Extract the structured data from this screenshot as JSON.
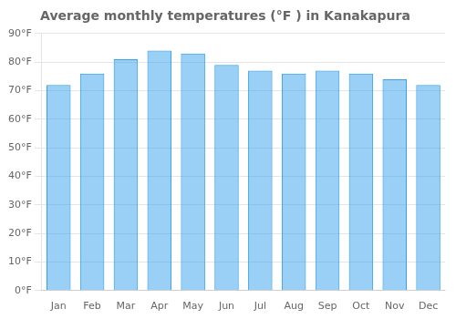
{
  "chart_data": {
    "type": "bar",
    "title": "Average monthly temperatures (°F ) in Kanakapura",
    "categories": [
      "Jan",
      "Feb",
      "Mar",
      "Apr",
      "May",
      "Jun",
      "Jul",
      "Aug",
      "Sep",
      "Oct",
      "Nov",
      "Dec"
    ],
    "values": [
      72,
      76,
      81,
      84,
      83,
      79,
      77,
      76,
      77,
      76,
      74,
      72
    ],
    "ylim": [
      0,
      90
    ],
    "yticks": [
      {
        "value": 0,
        "label": "0°F"
      },
      {
        "value": 10,
        "label": "10°F"
      },
      {
        "value": 20,
        "label": "20°F"
      },
      {
        "value": 30,
        "label": "30°F"
      },
      {
        "value": 40,
        "label": "40°F"
      },
      {
        "value": 50,
        "label": "50°F"
      },
      {
        "value": 60,
        "label": "60°F"
      },
      {
        "value": 70,
        "label": "70°F"
      },
      {
        "value": 80,
        "label": "80°F"
      },
      {
        "value": 90,
        "label": "90°F"
      }
    ],
    "grid": true
  }
}
